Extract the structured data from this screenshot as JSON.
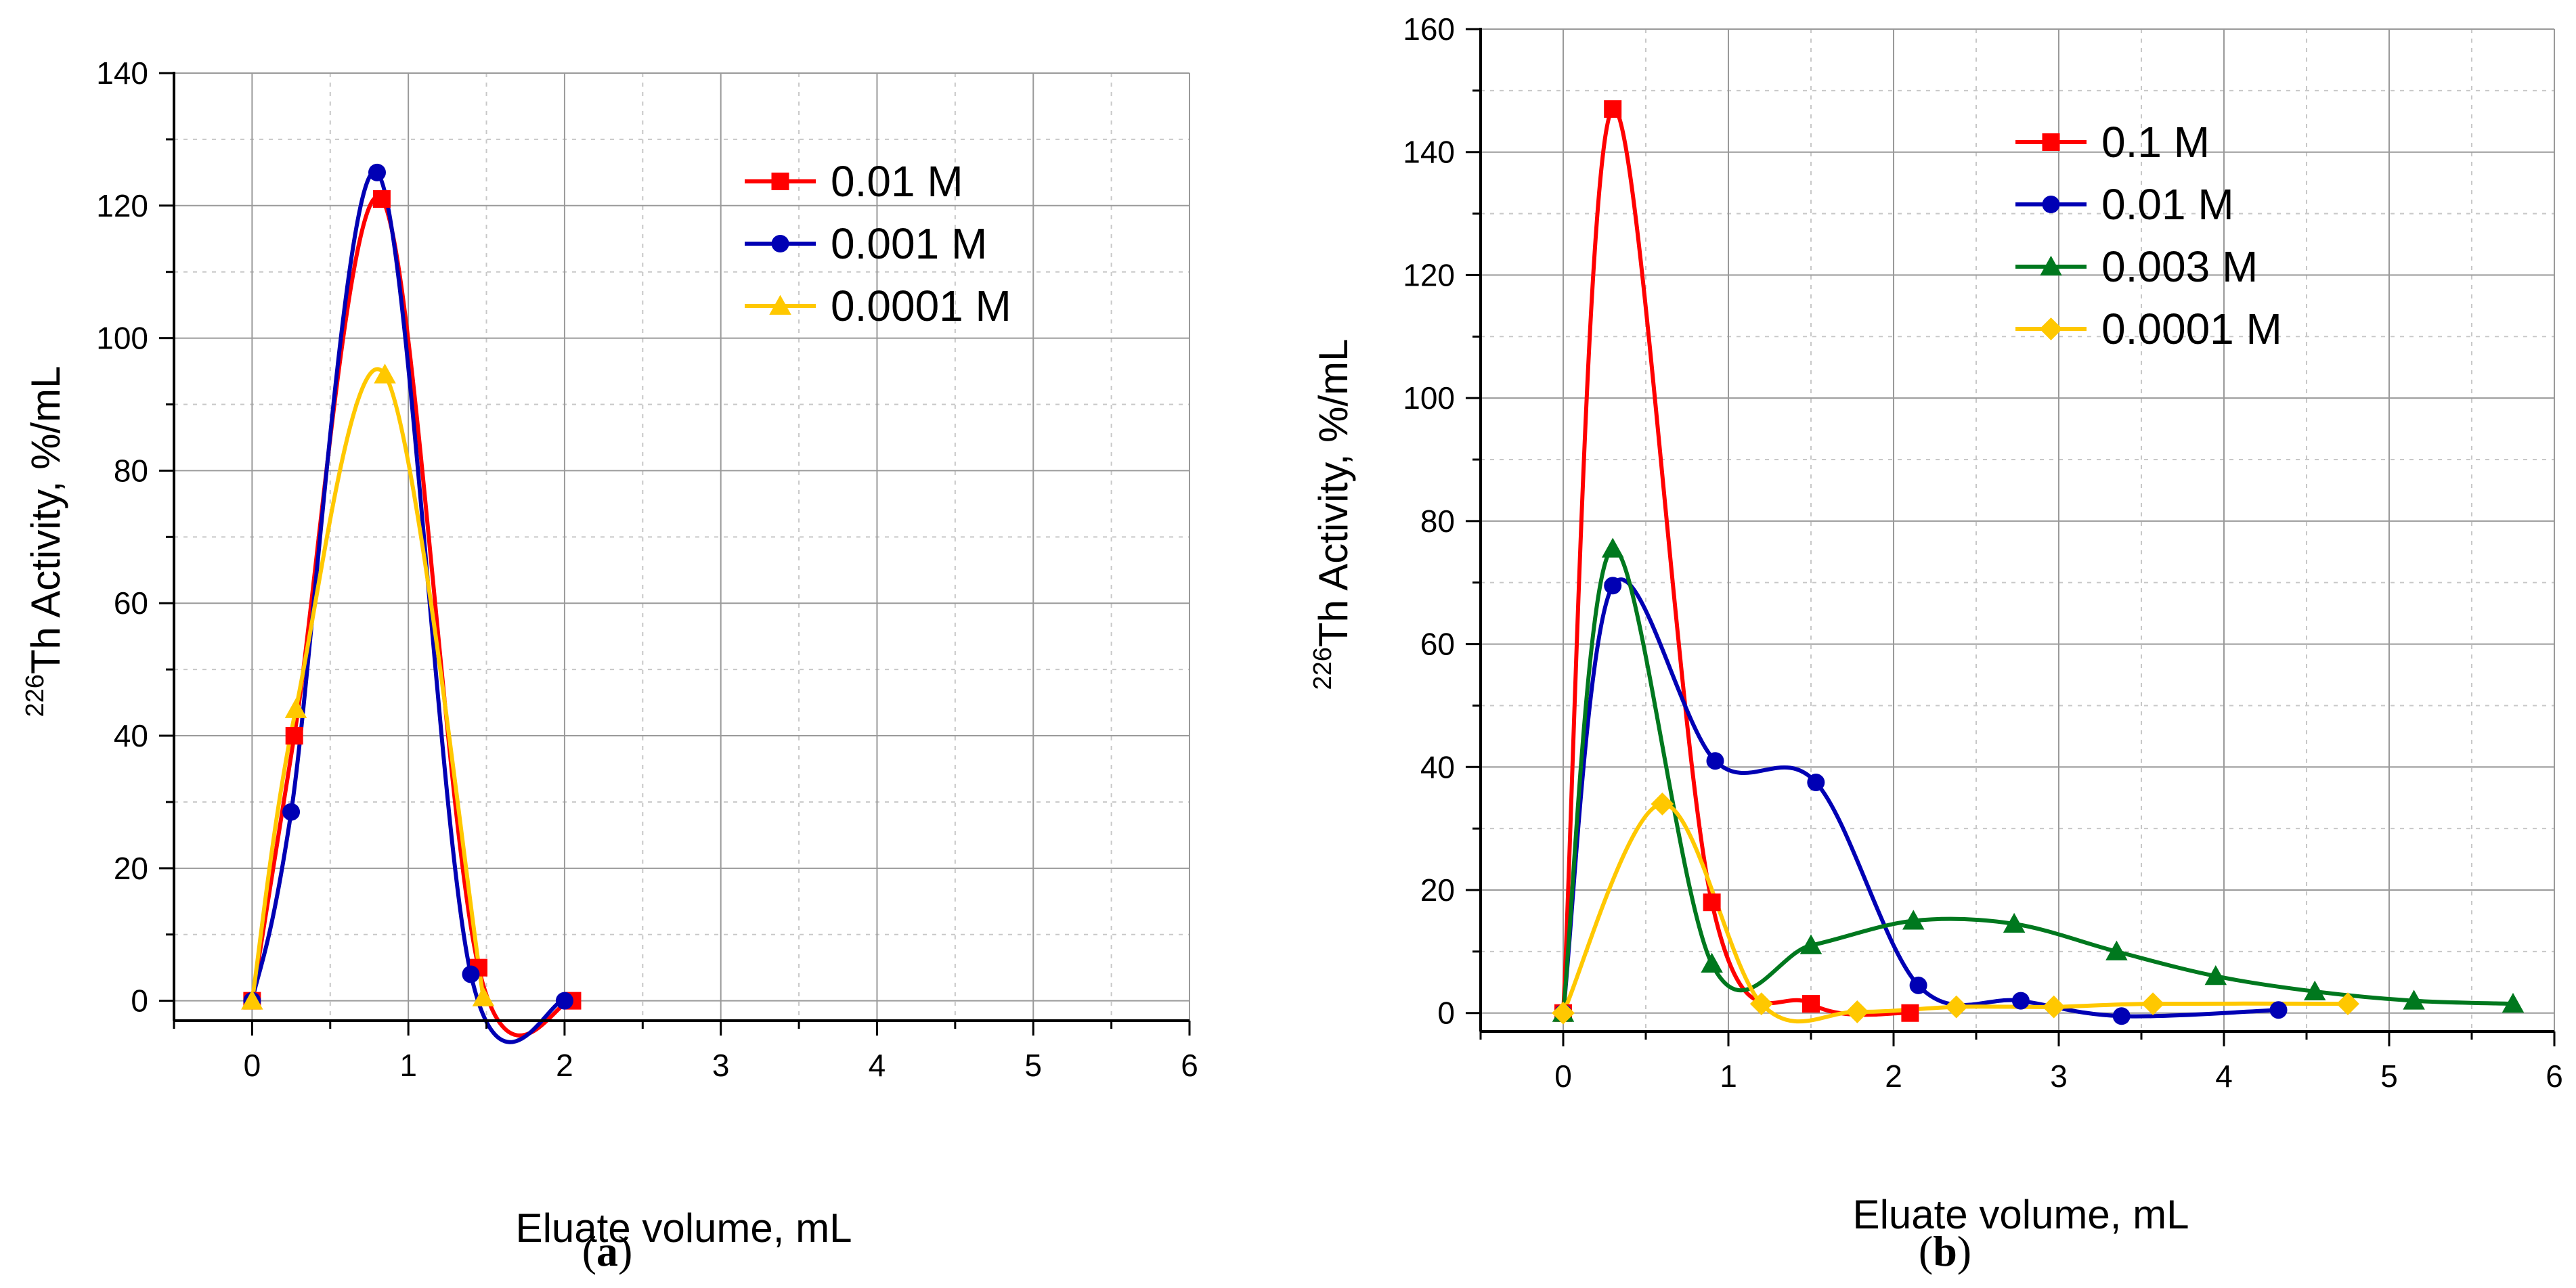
{
  "chart_data": [
    {
      "type": "line",
      "panel": "a",
      "panel_label": "a",
      "xlabel": "Eluate volume, mL",
      "ylabel_sup": "226",
      "ylabel": "Th Activity,  %/mL",
      "xlim": [
        -0.5,
        6
      ],
      "ylim": [
        -3,
        140
      ],
      "xticks": [
        0,
        1,
        2,
        3,
        4,
        5,
        6
      ],
      "yticks": [
        0,
        20,
        40,
        60,
        80,
        100,
        120,
        140
      ],
      "grid": true,
      "legend_position": "top-right",
      "series": [
        {
          "name": "0.01 M",
          "color": "#ff0000",
          "marker": "square",
          "x": [
            0,
            0.27,
            0.83,
            1.45,
            2.05
          ],
          "y": [
            0,
            40,
            121,
            5,
            0
          ]
        },
        {
          "name": "0.001 M",
          "color": "#0000b4",
          "marker": "circle",
          "x": [
            0,
            0.25,
            0.8,
            1.4,
            2.0
          ],
          "y": [
            0,
            28.5,
            125,
            4,
            0
          ]
        },
        {
          "name": "0.0001 M",
          "color": "#ffc800",
          "marker": "triangle",
          "x": [
            0,
            0.28,
            0.85,
            1.48
          ],
          "y": [
            0,
            44,
            94.5,
            0.5
          ]
        }
      ]
    },
    {
      "type": "line",
      "panel": "b",
      "panel_label": "b",
      "xlabel": "Eluate volume, mL",
      "ylabel_sup": "226",
      "ylabel": "Th Activity,  %/mL",
      "xlim": [
        -0.5,
        6
      ],
      "ylim": [
        -3,
        160
      ],
      "xticks": [
        0,
        1,
        2,
        3,
        4,
        5,
        6
      ],
      "yticks": [
        0,
        20,
        40,
        60,
        80,
        100,
        120,
        140,
        160
      ],
      "grid": true,
      "legend_position": "top-center",
      "series": [
        {
          "name": "0.1 M",
          "color": "#ff0000",
          "marker": "square",
          "x": [
            0,
            0.3,
            0.9,
            1.5,
            2.1
          ],
          "y": [
            0,
            147,
            18,
            1.5,
            0
          ]
        },
        {
          "name": "0.01 M",
          "color": "#0000b4",
          "marker": "circle",
          "x": [
            0,
            0.3,
            0.92,
            1.53,
            2.15,
            2.77,
            3.38,
            4.33
          ],
          "y": [
            0,
            69.5,
            41,
            37.5,
            4.5,
            2,
            -0.5,
            0.5
          ]
        },
        {
          "name": "0.003 M",
          "color": "#00781e",
          "marker": "triangle",
          "x": [
            0,
            0.3,
            0.9,
            1.5,
            2.12,
            2.73,
            3.35,
            3.95,
            4.55,
            5.15,
            5.75
          ],
          "y": [
            0,
            75.5,
            8,
            11,
            15,
            14.5,
            10,
            6,
            3.5,
            2,
            1.5
          ]
        },
        {
          "name": "0.0001 M",
          "color": "#ffc800",
          "marker": "diamond",
          "x": [
            0,
            0.6,
            1.2,
            1.78,
            2.38,
            2.97,
            3.57,
            4.75
          ],
          "y": [
            0,
            34,
            1.5,
            0.2,
            1,
            1,
            1.5,
            1.5
          ]
        }
      ]
    }
  ]
}
